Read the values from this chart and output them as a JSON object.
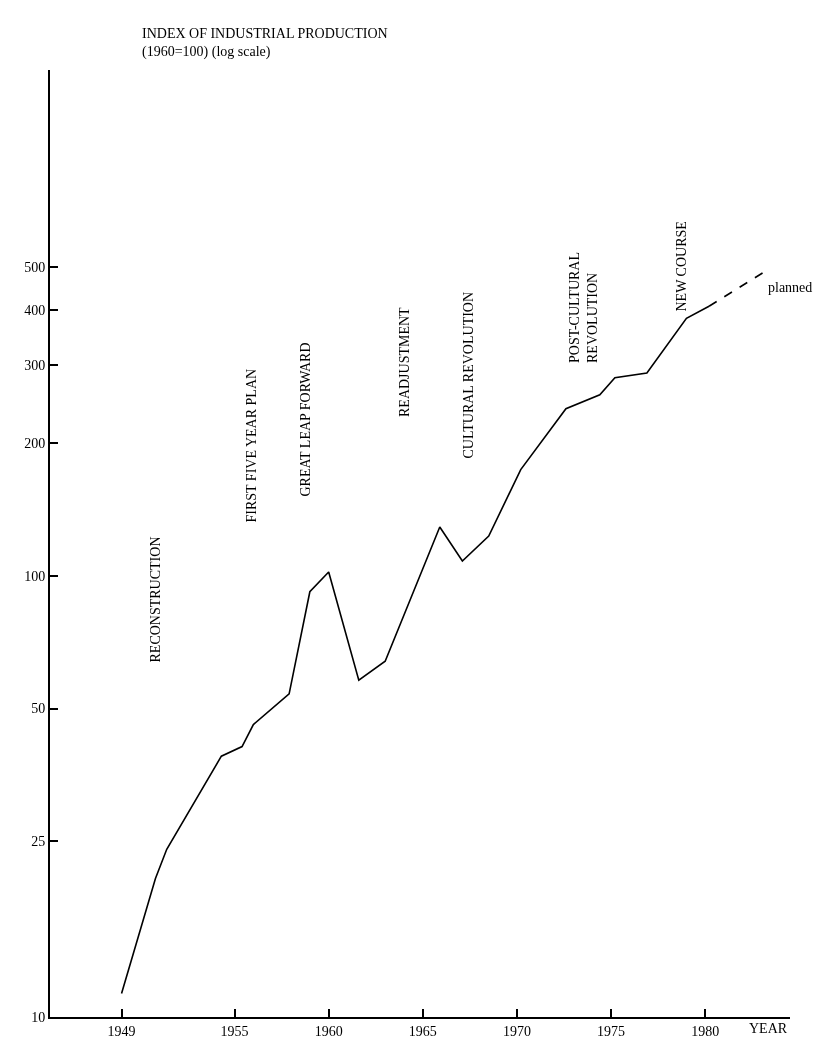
{
  "chart_data": {
    "type": "line",
    "ylabel": "INDEX OF INDUSTRIAL PRODUCTION\n(1960=100) (log scale)",
    "xlabel": "YEAR",
    "log": "y",
    "xlim": [
      1945.2,
      1984.5
    ],
    "xticks": [
      1949,
      1955,
      1960,
      1965,
      1970,
      1975,
      1980
    ],
    "ylim": [
      10,
      1400
    ],
    "yticks": [
      10,
      25,
      50,
      100,
      200,
      300,
      400,
      500
    ],
    "grid": false,
    "legend": false,
    "marker": "none",
    "series": [
      {
        "color": "#000000",
        "line_style": "solid",
        "x": [
          1949,
          1950.8,
          1951.4,
          1954.3,
          1955.4,
          1956,
          1957.9,
          1959,
          1960,
          1961.6,
          1963,
          1965.9,
          1967.1,
          1968.5,
          1970.2,
          1972.6,
          1974.4,
          1975.2,
          1976.9,
          1979,
          1980.2
        ],
        "values": [
          11.3,
          20.6,
          24,
          39,
          41,
          46,
          54,
          92,
          102,
          58,
          64,
          129,
          108,
          123,
          174,
          239,
          257,
          281,
          288,
          383,
          408
        ]
      },
      {
        "name": "planned",
        "color": "#000000",
        "line_style": "dashed",
        "x": [
          1980.2,
          1983.1
        ],
        "values": [
          408,
          487
        ]
      }
    ],
    "annotations": [
      "RECONSTRUCTION",
      "FIRST FIVE YEAR PLAN",
      "GREAT LEAP FORWARD",
      "READJUSTMENT",
      "CULTURAL REVOLUTION",
      "POST-CULTURAL\nREVOLUTION",
      "NEW COURSE"
    ]
  }
}
